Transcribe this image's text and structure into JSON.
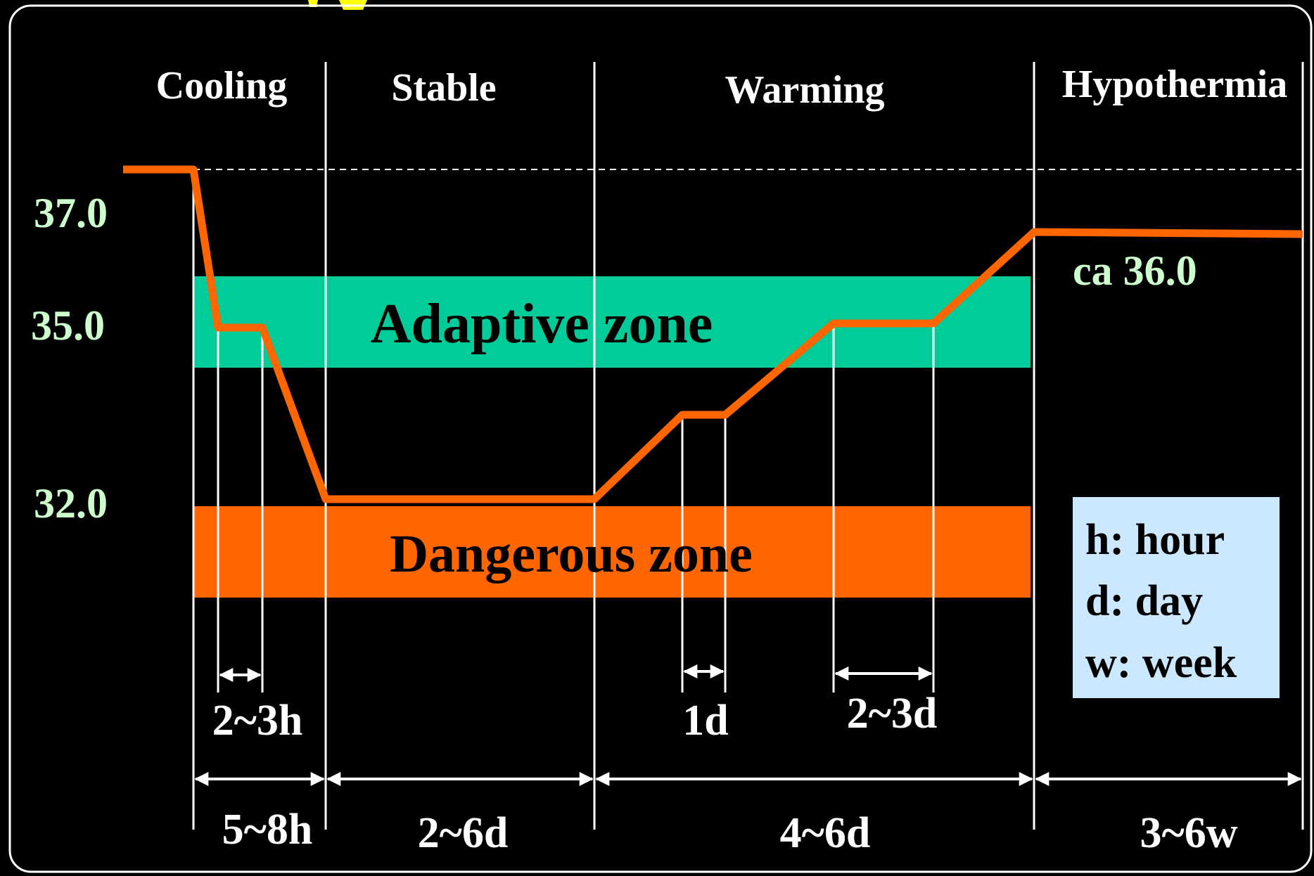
{
  "colors": {
    "background": "#000000",
    "frame": "#ffffff",
    "curve": "#ff6600",
    "adaptive_zone": "#00cc99",
    "dangerous_zone": "#ff6600",
    "temp_label": "#ccffcc",
    "legend_box": "#cce8ff",
    "title_fragment": "#ffff00"
  },
  "phases": [
    {
      "label": "Cooling",
      "duration": "5~8h"
    },
    {
      "label": "Stable",
      "duration": "2~6d"
    },
    {
      "label": "Warming",
      "duration": "4~6d"
    },
    {
      "label": "Hypothermia",
      "duration": "3~6w"
    }
  ],
  "temperature_labels": [
    "37.0",
    "35.0",
    "32.0"
  ],
  "zones": {
    "adaptive": "Adaptive zone",
    "dangerous": "Dangerous zone"
  },
  "curve_end_label": "ca 36.0",
  "sub_intervals": [
    "2~3h",
    "1d",
    "2~3d"
  ],
  "legend": [
    "h: hour",
    "d: day",
    "w: week"
  ]
}
